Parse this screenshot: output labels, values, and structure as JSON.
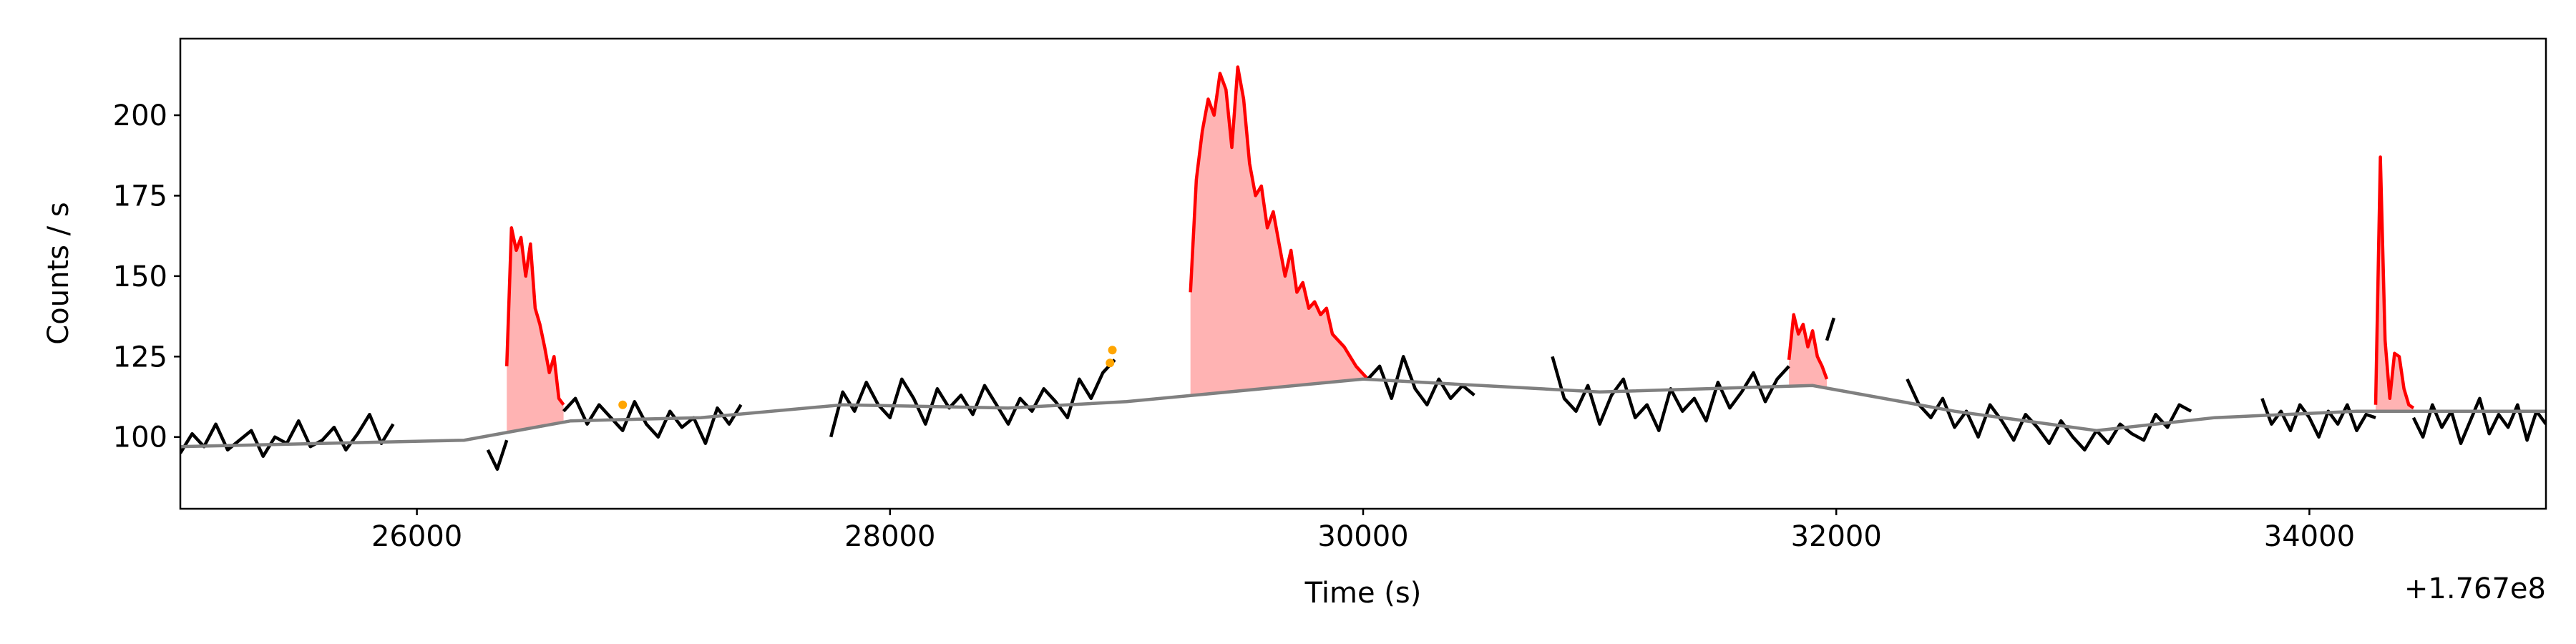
{
  "chart_data": {
    "type": "line",
    "xlabel": "Time (s)",
    "ylabel": "Counts / s",
    "x_offset_label": "+1.767e8",
    "xlim": [
      25000,
      35000
    ],
    "ylim": [
      77.7,
      223.8
    ],
    "xticks": [
      26000,
      28000,
      30000,
      32000,
      34000
    ],
    "yticks": [
      100,
      125,
      150,
      175,
      200
    ],
    "series": [
      {
        "color": "#000000",
        "x": [
          25000,
          25050,
          25100,
          25150,
          25200,
          25250,
          25300,
          25350,
          25400,
          25450,
          25500,
          25550,
          25600,
          25650,
          25700,
          25750,
          25800,
          25850,
          25900
        ],
        "values": [
          95,
          101,
          97,
          104,
          96,
          99,
          102,
          94,
          100,
          98,
          105,
          97,
          99,
          103,
          96,
          101,
          107,
          98,
          104
        ]
      },
      {
        "color": "#000000",
        "x": [
          26300,
          26340,
          26380
        ],
        "values": [
          96,
          90,
          99
        ]
      },
      {
        "color": "#ff0000",
        "fill": "#ffb3b3",
        "x": [
          26380,
          26400,
          26420,
          26440,
          26460,
          26480,
          26500,
          26520,
          26540,
          26560,
          26580,
          26600,
          26620
        ],
        "values": [
          122,
          165,
          158,
          162,
          150,
          160,
          140,
          135,
          128,
          120,
          125,
          112,
          110
        ]
      },
      {
        "color": "#000000",
        "x": [
          26620,
          26670,
          26720,
          26770,
          26820,
          26870,
          26920,
          26970,
          27020,
          27070,
          27120,
          27170,
          27220,
          27270,
          27320,
          27370
        ],
        "values": [
          108,
          112,
          104,
          110,
          106,
          102,
          111,
          104,
          100,
          108,
          103,
          106,
          98,
          109,
          104,
          110
        ]
      },
      {
        "color": "#000000",
        "x": [
          27750,
          27800,
          27850,
          27900,
          27950,
          28000,
          28050,
          28100,
          28150,
          28200,
          28250,
          28300,
          28350,
          28400,
          28450,
          28500,
          28550,
          28600,
          28650,
          28700,
          28750,
          28800,
          28850,
          28900,
          28950
        ],
        "values": [
          100,
          114,
          108,
          117,
          110,
          106,
          118,
          112,
          104,
          115,
          109,
          113,
          107,
          116,
          110,
          104,
          112,
          108,
          115,
          111,
          106,
          118,
          112,
          120,
          124
        ]
      },
      {
        "color": "#ff0000",
        "fill": "#ffb3b3",
        "x": [
          29270,
          29295,
          29320,
          29345,
          29370,
          29395,
          29420,
          29445,
          29470,
          29495,
          29520,
          29545,
          29570,
          29595,
          29620,
          29645,
          29670,
          29695,
          29720,
          29745,
          29770,
          29795,
          29820,
          29845,
          29870,
          29895,
          29920,
          29945,
          29970,
          29995,
          30020
        ],
        "values": [
          145,
          180,
          195,
          205,
          200,
          213,
          208,
          190,
          215,
          205,
          185,
          175,
          178,
          165,
          170,
          160,
          150,
          158,
          145,
          148,
          140,
          142,
          138,
          140,
          132,
          130,
          128,
          125,
          122,
          120,
          118
        ]
      },
      {
        "color": "#000000",
        "x": [
          30020,
          30070,
          30120,
          30170,
          30220,
          30270,
          30320,
          30370,
          30420,
          30470
        ],
        "values": [
          118,
          122,
          112,
          125,
          115,
          110,
          118,
          112,
          116,
          113
        ]
      },
      {
        "color": "#000000",
        "x": [
          30800,
          30850,
          30900,
          30950,
          31000,
          31050,
          31100,
          31150,
          31200,
          31250,
          31300,
          31350,
          31400,
          31450,
          31500,
          31550,
          31600,
          31650,
          31700,
          31750,
          31800
        ],
        "values": [
          125,
          112,
          108,
          116,
          104,
          113,
          118,
          106,
          110,
          102,
          115,
          108,
          112,
          105,
          117,
          109,
          114,
          120,
          111,
          118,
          122
        ]
      },
      {
        "color": "#ff0000",
        "fill": "#ffb3b3",
        "x": [
          31800,
          31820,
          31840,
          31860,
          31880,
          31900,
          31920,
          31940,
          31960
        ],
        "values": [
          124,
          138,
          132,
          135,
          128,
          133,
          125,
          122,
          118
        ]
      },
      {
        "color": "#000000",
        "x": [
          31960,
          31990
        ],
        "values": [
          130,
          137
        ]
      },
      {
        "color": "#000000",
        "x": [
          32300,
          32350,
          32400,
          32450,
          32500,
          32550,
          32600,
          32650,
          32700,
          32750,
          32800,
          32850,
          32900,
          32950,
          33000,
          33050,
          33100,
          33150,
          33200,
          33250,
          33300,
          33350,
          33400,
          33450,
          33500
        ],
        "values": [
          118,
          110,
          106,
          112,
          103,
          108,
          100,
          110,
          105,
          99,
          107,
          103,
          98,
          105,
          100,
          96,
          102,
          98,
          104,
          101,
          99,
          107,
          103,
          110,
          108
        ]
      },
      {
        "color": "#000000",
        "x": [
          33800,
          33840,
          33880,
          33920,
          33960,
          34000,
          34040,
          34080,
          34120,
          34160,
          34200,
          34240,
          34280
        ],
        "values": [
          112,
          104,
          108,
          102,
          110,
          106,
          100,
          108,
          104,
          110,
          102,
          107,
          106
        ]
      },
      {
        "color": "#ff0000",
        "fill": "#ffb3b3",
        "x": [
          34280,
          34300,
          34320,
          34340,
          34360,
          34380,
          34400,
          34420,
          34440
        ],
        "values": [
          110,
          187,
          130,
          112,
          126,
          125,
          115,
          110,
          109
        ]
      },
      {
        "color": "#000000",
        "x": [
          34440,
          34480,
          34520,
          34560,
          34600,
          34640,
          34680,
          34720,
          34760,
          34800,
          34840,
          34880,
          34920,
          34960,
          35000
        ],
        "values": [
          106,
          100,
          110,
          103,
          108,
          98,
          105,
          112,
          101,
          107,
          103,
          110,
          99,
          108,
          104
        ]
      }
    ],
    "background": {
      "color": "#808080",
      "x": [
        25000,
        26200,
        26650,
        27200,
        27800,
        28500,
        29000,
        30000,
        30500,
        31000,
        31900,
        32500,
        33100,
        33600,
        34200,
        35000
      ],
      "values": [
        97,
        99,
        105,
        106,
        110,
        109,
        111,
        118,
        116,
        114,
        116,
        108,
        102,
        106,
        108,
        108
      ]
    },
    "points": {
      "color": "#ffa500",
      "x": [
        26870,
        28930,
        28940
      ],
      "values": [
        110,
        123,
        127
      ]
    }
  }
}
